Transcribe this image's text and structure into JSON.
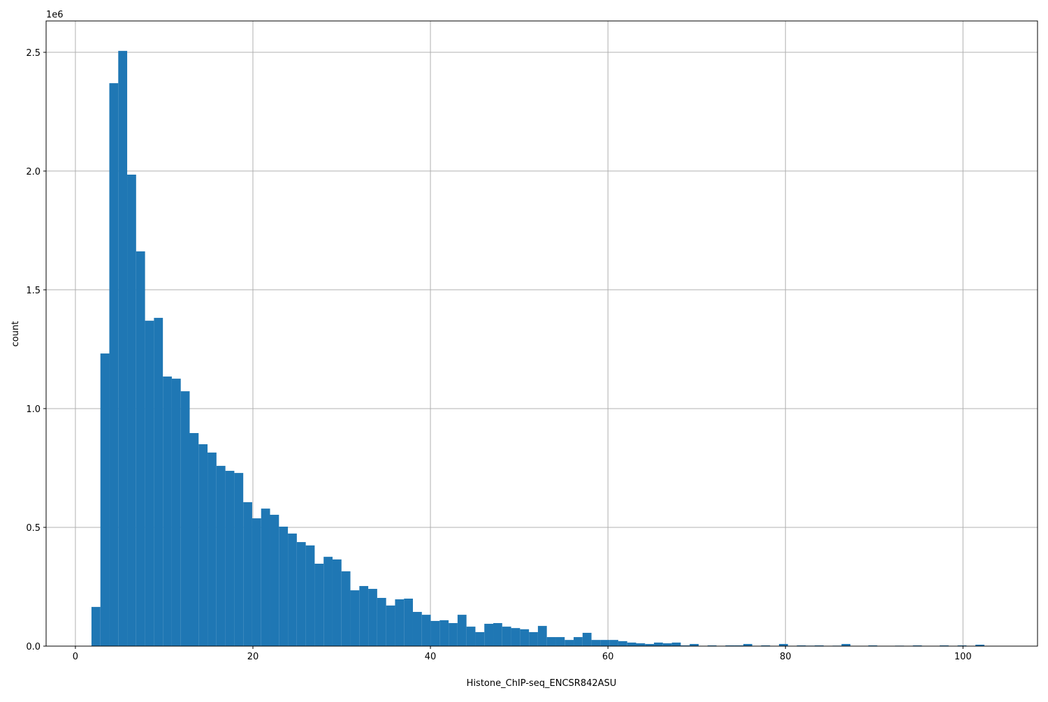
{
  "chart_data": {
    "type": "bar",
    "subtype": "histogram",
    "title": "",
    "xlabel": "Histone_ChIP-seq_ENCSR842ASU",
    "ylabel": "count",
    "y_offset_label": "1e6",
    "bin_start": 1.81,
    "bin_width": 1.006,
    "values_scale": 1000000,
    "values": [
      0.165,
      1.232,
      2.37,
      2.506,
      1.985,
      1.662,
      1.37,
      1.382,
      1.135,
      1.126,
      1.073,
      0.897,
      0.85,
      0.815,
      0.759,
      0.738,
      0.729,
      0.606,
      0.538,
      0.579,
      0.553,
      0.503,
      0.474,
      0.438,
      0.424,
      0.347,
      0.376,
      0.365,
      0.315,
      0.235,
      0.253,
      0.241,
      0.203,
      0.171,
      0.197,
      0.2,
      0.144,
      0.132,
      0.106,
      0.109,
      0.097,
      0.132,
      0.082,
      0.059,
      0.094,
      0.097,
      0.082,
      0.076,
      0.071,
      0.059,
      0.085,
      0.038,
      0.038,
      0.026,
      0.038,
      0.056,
      0.026,
      0.026,
      0.026,
      0.021,
      0.015,
      0.012,
      0.009,
      0.015,
      0.012,
      0.015,
      0.003,
      0.009,
      0.001,
      0.003,
      0,
      0.003,
      0.003,
      0.009,
      0,
      0.003,
      0,
      0.009,
      0,
      0.003,
      0.002,
      0.003,
      0.001,
      0.002,
      0.009,
      0.001,
      0,
      0.003,
      0,
      0,
      0.002,
      0,
      0.003,
      0,
      0,
      0.003,
      0,
      0.003,
      0,
      0.006,
      0
    ],
    "xlim": [
      -3.3,
      108.4
    ],
    "ylim": [
      0,
      2.632
    ],
    "xticks": [
      "0",
      "20",
      "40",
      "60",
      "80",
      "100"
    ],
    "yticks": [
      "0.0",
      "0.5",
      "1.0",
      "1.5",
      "2.0",
      "2.5"
    ],
    "grid": true,
    "bar_color": "#1f77b4",
    "grid_color": "#b0b0b0"
  }
}
